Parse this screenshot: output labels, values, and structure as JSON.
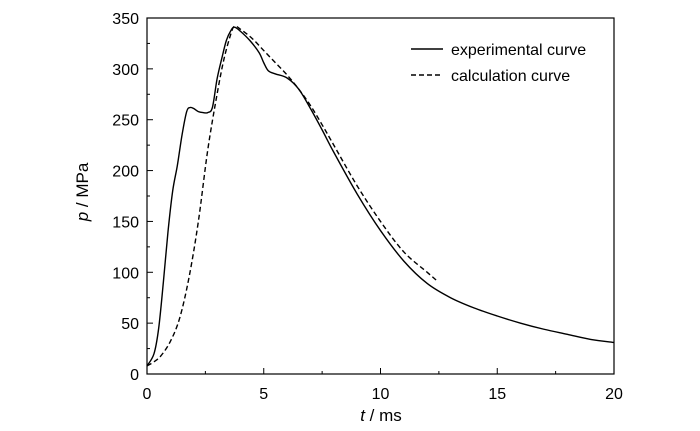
{
  "chart_data": {
    "type": "line",
    "title": "",
    "xlabel": {
      "symbol": "t",
      "unit": " / ms"
    },
    "ylabel": {
      "symbol": "p",
      "unit": " / MPa"
    },
    "xlim": [
      0,
      20
    ],
    "ylim": [
      0,
      350
    ],
    "xticks": [
      0,
      5,
      10,
      15,
      20
    ],
    "yticks": [
      0,
      50,
      100,
      150,
      200,
      250,
      300,
      350
    ],
    "grid": false,
    "legend_position": "top-right",
    "series": [
      {
        "name": "experimental curve",
        "style": "solid",
        "color": "#000000",
        "points": [
          [
            0.0,
            8
          ],
          [
            0.3,
            20
          ],
          [
            0.5,
            45
          ],
          [
            0.7,
            90
          ],
          [
            0.9,
            140
          ],
          [
            1.1,
            180
          ],
          [
            1.3,
            205
          ],
          [
            1.5,
            235
          ],
          [
            1.7,
            258
          ],
          [
            1.85,
            262
          ],
          [
            2.0,
            261
          ],
          [
            2.2,
            258
          ],
          [
            2.4,
            257
          ],
          [
            2.6,
            257
          ],
          [
            2.8,
            262
          ],
          [
            3.0,
            290
          ],
          [
            3.2,
            310
          ],
          [
            3.4,
            328
          ],
          [
            3.6,
            338
          ],
          [
            3.75,
            341
          ],
          [
            4.0,
            337
          ],
          [
            4.4,
            328
          ],
          [
            4.8,
            316
          ],
          [
            5.0,
            306
          ],
          [
            5.2,
            298
          ],
          [
            5.5,
            295
          ],
          [
            6.0,
            291
          ],
          [
            6.5,
            280
          ],
          [
            7.0,
            261
          ],
          [
            7.5,
            240
          ],
          [
            8.0,
            218
          ],
          [
            9.0,
            177
          ],
          [
            10.0,
            141
          ],
          [
            11.0,
            111
          ],
          [
            12.0,
            89
          ],
          [
            13.0,
            75
          ],
          [
            14.0,
            65
          ],
          [
            15.0,
            57
          ],
          [
            16.0,
            50
          ],
          [
            17.0,
            44
          ],
          [
            18.0,
            39
          ],
          [
            19.0,
            34
          ],
          [
            20.0,
            31
          ]
        ]
      },
      {
        "name": "calculation curve",
        "style": "dashed",
        "color": "#000000",
        "points": [
          [
            0.0,
            8
          ],
          [
            0.3,
            12
          ],
          [
            0.6,
            18
          ],
          [
            1.0,
            32
          ],
          [
            1.4,
            55
          ],
          [
            1.8,
            95
          ],
          [
            2.2,
            150
          ],
          [
            2.6,
            220
          ],
          [
            3.0,
            275
          ],
          [
            3.3,
            310
          ],
          [
            3.6,
            335
          ],
          [
            3.75,
            342
          ],
          [
            4.0,
            339
          ],
          [
            4.5,
            330
          ],
          [
            5.0,
            318
          ],
          [
            5.5,
            306
          ],
          [
            6.0,
            294
          ],
          [
            6.5,
            280
          ],
          [
            7.0,
            264
          ],
          [
            7.5,
            245
          ],
          [
            8.0,
            225
          ],
          [
            9.0,
            185
          ],
          [
            10.0,
            150
          ],
          [
            11.0,
            120
          ],
          [
            12.0,
            100
          ],
          [
            12.4,
            92
          ]
        ]
      }
    ]
  }
}
